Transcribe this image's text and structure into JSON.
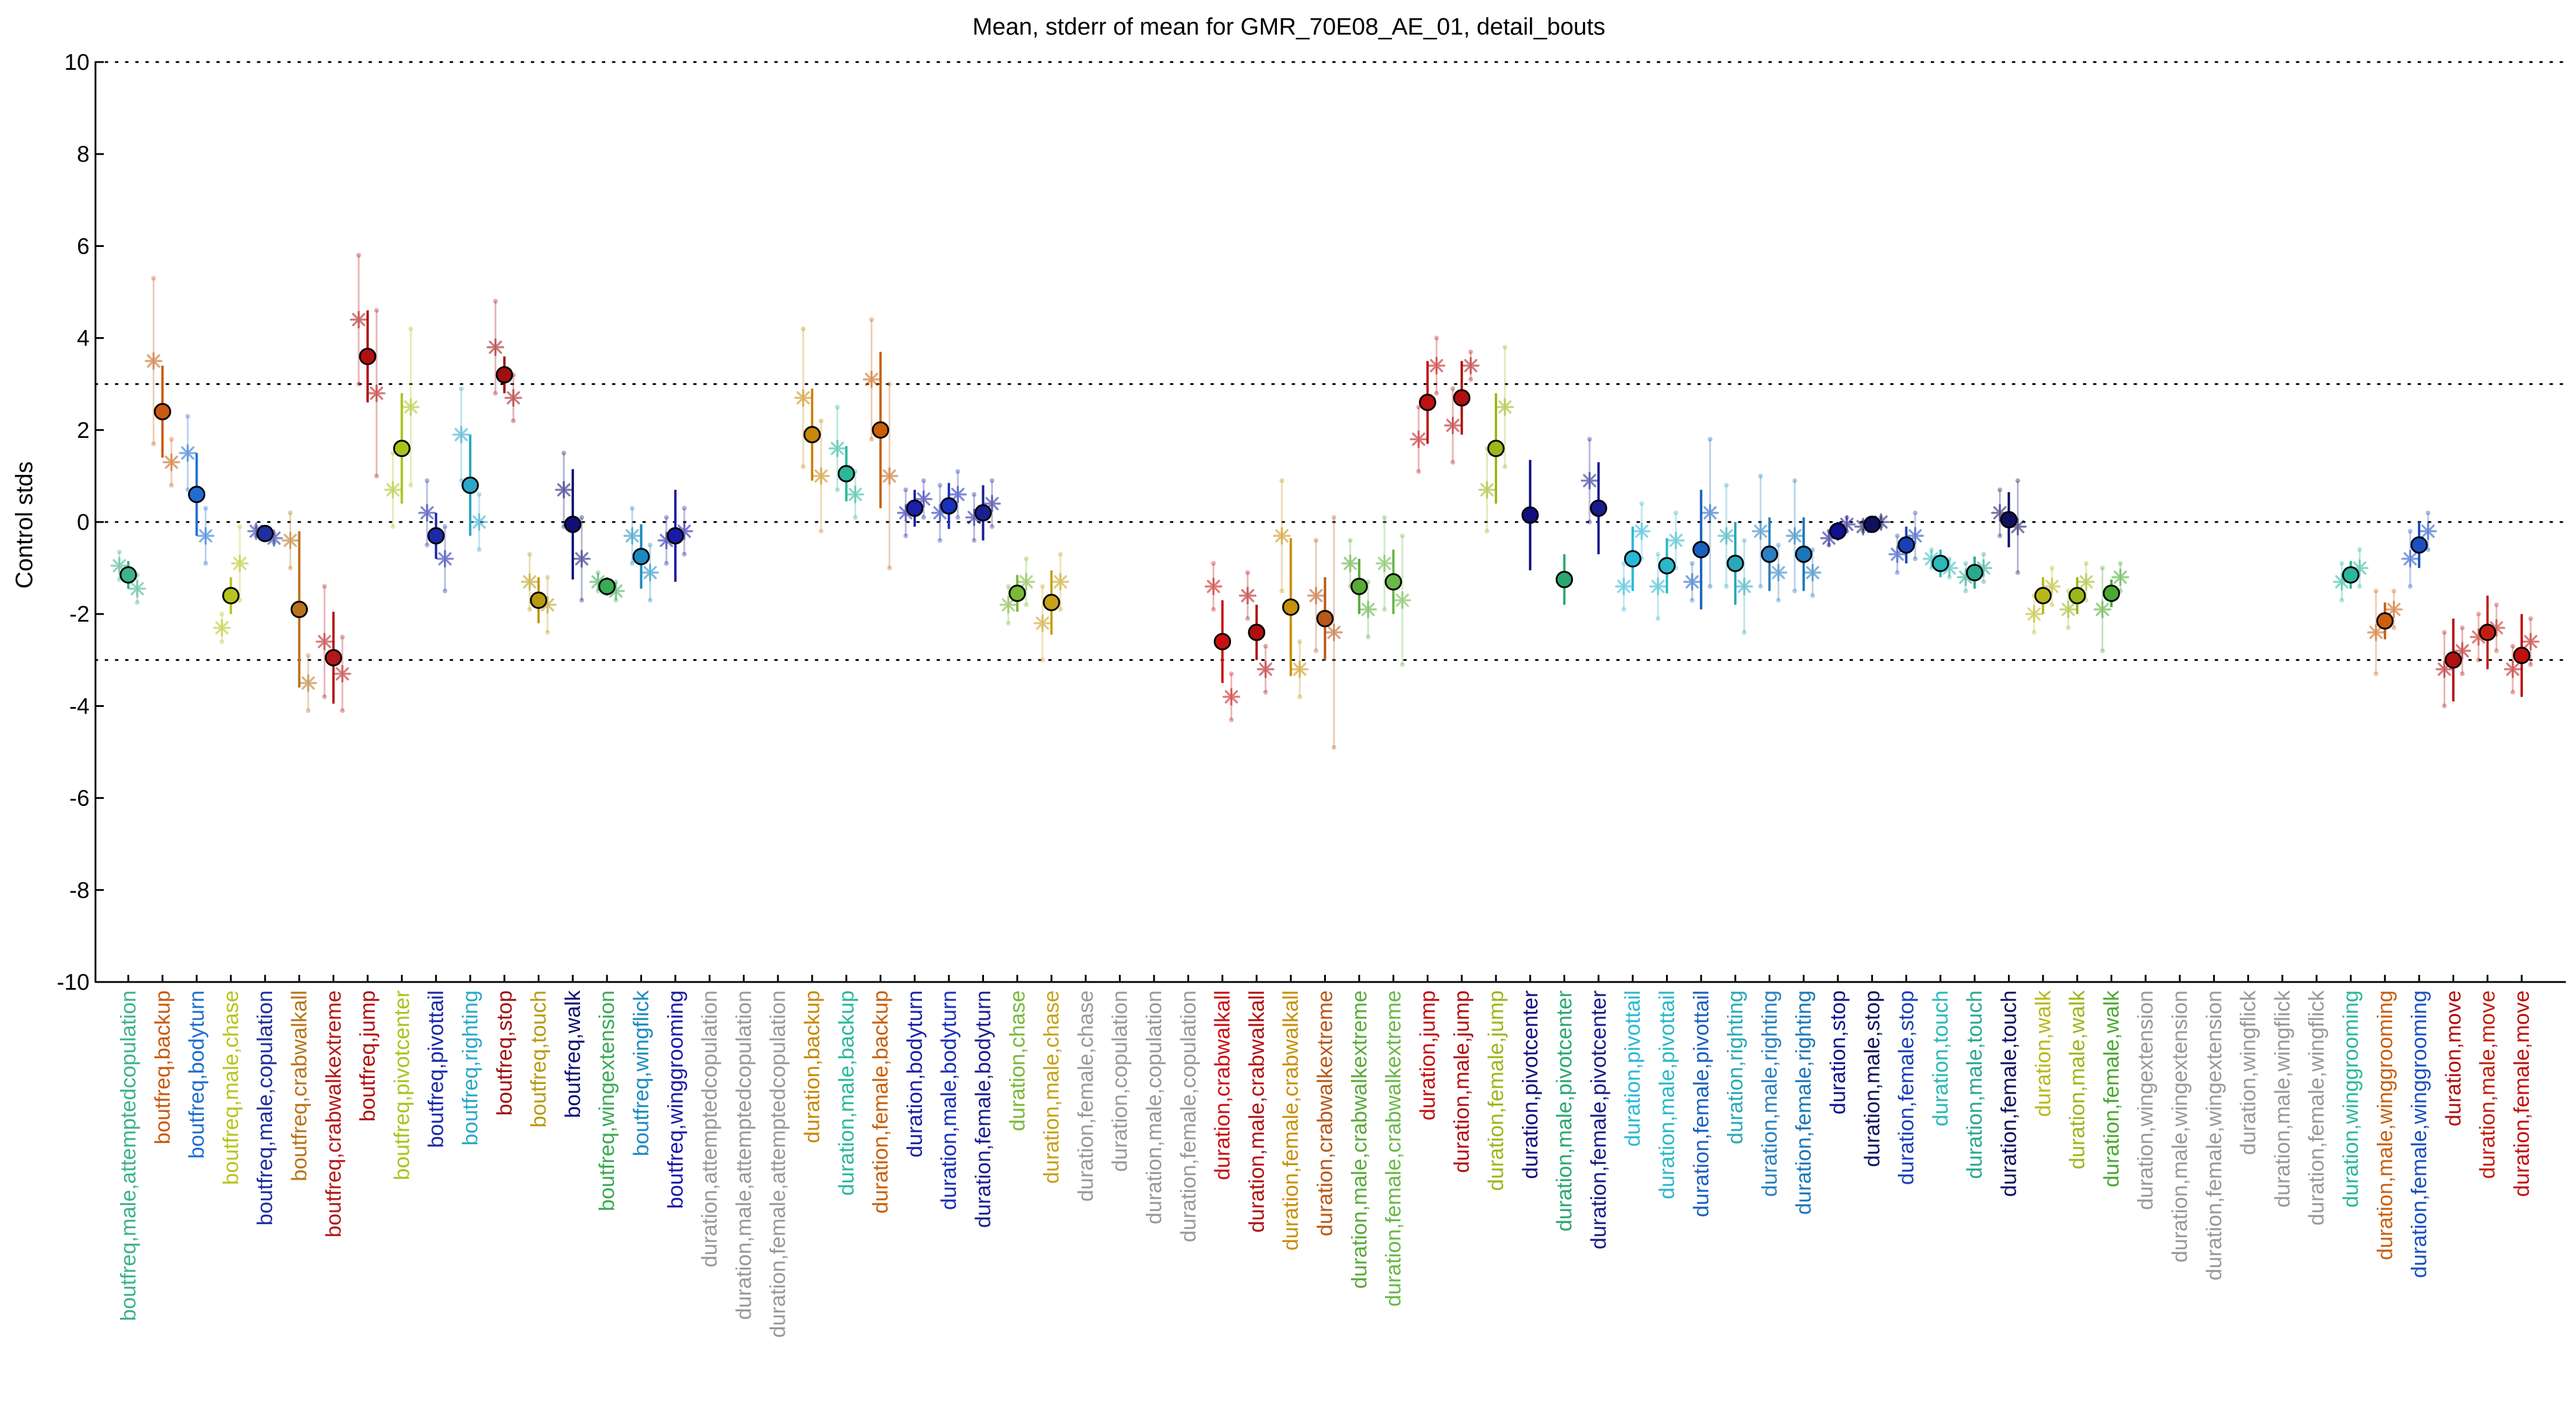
{
  "chart_data": {
    "type": "scatter",
    "title": "Mean, stderr of mean for GMR_70E08_AE_01, detail_bouts",
    "xlabel": "",
    "ylabel": "Control stds",
    "ylim": [
      -10,
      10
    ],
    "yticks": [
      10,
      8,
      6,
      4,
      2,
      0,
      -2,
      -4,
      -6,
      -8,
      -10
    ],
    "reference_lines": [
      10,
      3,
      0,
      -3,
      -10
    ],
    "grid": false,
    "categories": [
      {
        "label": "boutfreq,male,attemptedcopulation",
        "color": "#3cb38a",
        "mean": -1.15,
        "err": 0.3,
        "sub": [
          [
            -0.95,
            0.3
          ],
          [
            -1.45,
            0.3
          ]
        ]
      },
      {
        "label": "boutfreq,backup",
        "color": "#c85a10",
        "mean": 2.4,
        "err": 1.0,
        "sub": [
          [
            3.5,
            1.8
          ],
          [
            1.3,
            0.5
          ]
        ]
      },
      {
        "label": "boutfreq,bodyturn",
        "color": "#1f6ecf",
        "mean": 0.6,
        "err": 0.9,
        "sub": [
          [
            1.5,
            0.8
          ],
          [
            -0.3,
            0.6
          ]
        ]
      },
      {
        "label": "boutfreq,male,chase",
        "color": "#b8c41c",
        "mean": -1.6,
        "err": 0.4,
        "sub": [
          [
            -2.3,
            0.3
          ],
          [
            -0.9,
            0.8
          ]
        ]
      },
      {
        "label": "boutfreq,male,copulation",
        "color": "#1f2f9f",
        "mean": -0.25,
        "err": 0.1,
        "sub": [
          [
            -0.2,
            0.1
          ],
          [
            -0.35,
            0.1
          ]
        ]
      },
      {
        "label": "boutfreq,crabwalkall",
        "color": "#b8731a",
        "mean": -1.9,
        "err": 1.7,
        "sub": [
          [
            -0.4,
            0.6
          ],
          [
            -3.5,
            0.6
          ]
        ]
      },
      {
        "label": "boutfreq,crabwalkextreme",
        "color": "#b31919",
        "mean": -2.95,
        "err": 1.0,
        "sub": [
          [
            -2.6,
            1.2
          ],
          [
            -3.3,
            0.8
          ]
        ]
      },
      {
        "label": "boutfreq,jump",
        "color": "#b01010",
        "mean": 3.6,
        "err": 1.0,
        "sub": [
          [
            4.4,
            1.4
          ],
          [
            2.8,
            1.8
          ]
        ]
      },
      {
        "label": "boutfreq,pivotcenter",
        "color": "#a8c41c",
        "mean": 1.6,
        "err": 1.2,
        "sub": [
          [
            0.7,
            0.8
          ],
          [
            2.5,
            1.7
          ]
        ]
      },
      {
        "label": "boutfreq,pivottail",
        "color": "#1a2aa8",
        "mean": -0.3,
        "err": 0.5,
        "sub": [
          [
            0.2,
            0.7
          ],
          [
            -0.8,
            0.7
          ]
        ]
      },
      {
        "label": "boutfreq,righting",
        "color": "#2aa8c8",
        "mean": 0.8,
        "err": 1.1,
        "sub": [
          [
            1.9,
            1.0
          ],
          [
            0.0,
            0.6
          ]
        ]
      },
      {
        "label": "boutfreq,stop",
        "color": "#a01010",
        "mean": 3.2,
        "err": 0.4,
        "sub": [
          [
            3.8,
            1.0
          ],
          [
            2.7,
            0.5
          ]
        ]
      },
      {
        "label": "boutfreq,touch",
        "color": "#b89a10",
        "mean": -1.7,
        "err": 0.5,
        "sub": [
          [
            -1.3,
            0.6
          ],
          [
            -1.8,
            0.6
          ]
        ]
      },
      {
        "label": "boutfreq,walk",
        "color": "#101075",
        "mean": -0.05,
        "err": 1.2,
        "sub": [
          [
            0.7,
            0.8
          ],
          [
            -0.8,
            0.9
          ]
        ]
      },
      {
        "label": "boutfreq,wingextension",
        "color": "#3aaa55",
        "mean": -1.4,
        "err": 0.2,
        "sub": [
          [
            -1.3,
            0.2
          ],
          [
            -1.5,
            0.2
          ]
        ]
      },
      {
        "label": "boutfreq,wingflick",
        "color": "#1a8ac0",
        "mean": -0.75,
        "err": 0.7,
        "sub": [
          [
            -0.3,
            0.6
          ],
          [
            -1.1,
            0.6
          ]
        ]
      },
      {
        "label": "boutfreq,winggrooming",
        "color": "#1a1aa8",
        "mean": -0.3,
        "err": 1.0,
        "sub": [
          [
            -0.4,
            0.5
          ],
          [
            -0.2,
            0.5
          ]
        ]
      },
      {
        "label": "duration,attemptedcopulation",
        "color": "#999999"
      },
      {
        "label": "duration,male,attemptedcopulation",
        "color": "#999999"
      },
      {
        "label": "duration,female,attemptedcopulation",
        "color": "#999999"
      },
      {
        "label": "duration,backup",
        "color": "#c8880a",
        "mean": 1.9,
        "err": 1.0,
        "sub": [
          [
            2.7,
            1.5
          ],
          [
            1.0,
            1.2
          ]
        ]
      },
      {
        "label": "duration,male,backup",
        "color": "#2ab89a",
        "mean": 1.05,
        "err": 0.6,
        "sub": [
          [
            1.6,
            0.9
          ],
          [
            0.6,
            0.5
          ]
        ]
      },
      {
        "label": "duration,female,backup",
        "color": "#c8600a",
        "mean": 2.0,
        "err": 1.7,
        "sub": [
          [
            3.1,
            1.3
          ],
          [
            1.0,
            2.0
          ]
        ]
      },
      {
        "label": "duration,bodyturn",
        "color": "#1a20a8",
        "mean": 0.3,
        "err": 0.4,
        "sub": [
          [
            0.2,
            0.5
          ],
          [
            0.5,
            0.4
          ]
        ]
      },
      {
        "label": "duration,male,bodyturn",
        "color": "#1a30b8",
        "mean": 0.35,
        "err": 0.5,
        "sub": [
          [
            0.2,
            0.6
          ],
          [
            0.6,
            0.5
          ]
        ]
      },
      {
        "label": "duration,female,bodyturn",
        "color": "#1a2090",
        "mean": 0.2,
        "err": 0.6,
        "sub": [
          [
            0.1,
            0.5
          ],
          [
            0.4,
            0.5
          ]
        ]
      },
      {
        "label": "duration,chase",
        "color": "#7ab83a",
        "mean": -1.55,
        "err": 0.4,
        "sub": [
          [
            -1.8,
            0.4
          ],
          [
            -1.3,
            0.5
          ]
        ]
      },
      {
        "label": "duration,male,chase",
        "color": "#c8a01a",
        "mean": -1.75,
        "err": 0.7,
        "sub": [
          [
            -2.2,
            0.8
          ],
          [
            -1.3,
            0.6
          ]
        ]
      },
      {
        "label": "duration,female,chase",
        "color": "#999999"
      },
      {
        "label": "duration,copulation",
        "color": "#999999"
      },
      {
        "label": "duration,male,copulation",
        "color": "#999999"
      },
      {
        "label": "duration,female,copulation",
        "color": "#999999"
      },
      {
        "label": "duration,crabwalkall",
        "color": "#c81010",
        "mean": -2.6,
        "err": 0.9,
        "sub": [
          [
            -1.4,
            0.5
          ],
          [
            -3.8,
            0.5
          ]
        ]
      },
      {
        "label": "duration,male,crabwalkall",
        "color": "#b01010",
        "mean": -2.4,
        "err": 0.6,
        "sub": [
          [
            -1.6,
            0.5
          ],
          [
            -3.2,
            0.5
          ]
        ]
      },
      {
        "label": "duration,female,crabwalkall",
        "color": "#c8900a",
        "mean": -1.85,
        "err": 1.5,
        "sub": [
          [
            -0.3,
            1.2
          ],
          [
            -3.2,
            0.6
          ]
        ]
      },
      {
        "label": "duration,crabwalkextreme",
        "color": "#b8581a",
        "mean": -2.1,
        "err": 0.9,
        "sub": [
          [
            -1.6,
            1.2
          ],
          [
            -2.4,
            2.5
          ]
        ]
      },
      {
        "label": "duration,male,crabwalkextreme",
        "color": "#5aaa3a",
        "mean": -1.4,
        "err": 0.6,
        "sub": [
          [
            -0.9,
            0.5
          ],
          [
            -1.9,
            0.6
          ]
        ]
      },
      {
        "label": "duration,female,crabwalkextreme",
        "color": "#6ab84a",
        "mean": -1.3,
        "err": 0.7,
        "sub": [
          [
            -0.9,
            1.0
          ],
          [
            -1.7,
            1.4
          ]
        ]
      },
      {
        "label": "duration,jump",
        "color": "#c01010",
        "mean": 2.6,
        "err": 0.9,
        "sub": [
          [
            1.8,
            0.7
          ],
          [
            3.4,
            0.6
          ]
        ]
      },
      {
        "label": "duration,male,jump",
        "color": "#b01010",
        "mean": 2.7,
        "err": 0.8,
        "sub": [
          [
            2.1,
            0.8
          ],
          [
            3.4,
            0.3
          ]
        ]
      },
      {
        "label": "duration,female,jump",
        "color": "#9ab81a",
        "mean": 1.6,
        "err": 1.2,
        "sub": [
          [
            0.7,
            0.9
          ],
          [
            2.5,
            1.3
          ]
        ]
      },
      {
        "label": "duration,pivotcenter",
        "color": "#101080",
        "mean": 0.15,
        "err": 1.2,
        "sub": []
      },
      {
        "label": "duration,male,pivotcenter",
        "color": "#2aa870",
        "mean": -1.25,
        "err": 0.55,
        "sub": []
      },
      {
        "label": "duration,female,pivotcenter",
        "color": "#1a1a90",
        "mean": 0.3,
        "err": 1.0,
        "sub": [
          [
            0.9,
            0.9
          ]
        ]
      },
      {
        "label": "duration,pivottail",
        "color": "#2ab8d8",
        "mean": -0.8,
        "err": 0.7,
        "sub": [
          [
            -1.4,
            0.5
          ],
          [
            -0.2,
            0.6
          ]
        ]
      },
      {
        "label": "duration,male,pivottail",
        "color": "#2ab8c8",
        "mean": -0.95,
        "err": 0.6,
        "sub": [
          [
            -1.4,
            0.7
          ],
          [
            -0.4,
            0.6
          ]
        ]
      },
      {
        "label": "duration,female,pivottail",
        "color": "#1a60c0",
        "mean": -0.6,
        "err": 1.3,
        "sub": [
          [
            -1.3,
            0.4
          ],
          [
            0.2,
            1.6
          ]
        ]
      },
      {
        "label": "duration,righting",
        "color": "#2aa8b8",
        "mean": -0.9,
        "err": 0.9,
        "sub": [
          [
            -0.3,
            1.1
          ],
          [
            -1.4,
            1.0
          ]
        ]
      },
      {
        "label": "duration,male,righting",
        "color": "#2a80c0",
        "mean": -0.7,
        "err": 0.8,
        "sub": [
          [
            -0.2,
            1.2
          ],
          [
            -1.1,
            0.6
          ]
        ]
      },
      {
        "label": "duration,female,righting",
        "color": "#1a78b8",
        "mean": -0.7,
        "err": 0.8,
        "sub": [
          [
            -0.3,
            1.2
          ],
          [
            -1.1,
            0.5
          ]
        ]
      },
      {
        "label": "duration,stop",
        "color": "#101090",
        "mean": -0.2,
        "err": 0.2,
        "sub": [
          [
            -0.35,
            0.15
          ],
          [
            -0.05,
            0.15
          ]
        ]
      },
      {
        "label": "duration,male,stop",
        "color": "#101060",
        "mean": -0.05,
        "err": 0.15,
        "sub": [
          [
            -0.1,
            0.1
          ],
          [
            0.0,
            0.1
          ]
        ]
      },
      {
        "label": "duration,female,stop",
        "color": "#1a40b8",
        "mean": -0.5,
        "err": 0.4,
        "sub": [
          [
            -0.7,
            0.4
          ],
          [
            -0.3,
            0.5
          ]
        ]
      },
      {
        "label": "duration,touch",
        "color": "#2ab8b8",
        "mean": -0.9,
        "err": 0.3,
        "sub": [
          [
            -0.8,
            0.2
          ],
          [
            -1.0,
            0.2
          ]
        ]
      },
      {
        "label": "duration,male,touch",
        "color": "#2aa890",
        "mean": -1.1,
        "err": 0.35,
        "sub": [
          [
            -1.2,
            0.3
          ],
          [
            -1.0,
            0.3
          ]
        ]
      },
      {
        "label": "duration,female,touch",
        "color": "#101060",
        "mean": 0.05,
        "err": 0.6,
        "sub": [
          [
            0.2,
            0.5
          ],
          [
            -0.1,
            1.0
          ]
        ]
      },
      {
        "label": "duration,walk",
        "color": "#b8b81a",
        "mean": -1.6,
        "err": 0.4,
        "sub": [
          [
            -2.0,
            0.4
          ],
          [
            -1.4,
            0.4
          ]
        ]
      },
      {
        "label": "duration,male,walk",
        "color": "#9ab81a",
        "mean": -1.6,
        "err": 0.4,
        "sub": [
          [
            -1.9,
            0.4
          ],
          [
            -1.3,
            0.4
          ]
        ]
      },
      {
        "label": "duration,female,walk",
        "color": "#4aa830",
        "mean": -1.55,
        "err": 0.3,
        "sub": [
          [
            -1.9,
            0.9
          ],
          [
            -1.2,
            0.3
          ]
        ]
      },
      {
        "label": "duration,wingextension",
        "color": "#999999"
      },
      {
        "label": "duration,male,wingextension",
        "color": "#999999"
      },
      {
        "label": "duration,female,wingextension",
        "color": "#999999"
      },
      {
        "label": "duration,wingflick",
        "color": "#999999"
      },
      {
        "label": "duration,male,wingflick",
        "color": "#999999"
      },
      {
        "label": "duration,female,wingflick",
        "color": "#999999"
      },
      {
        "label": "duration,winggrooming",
        "color": "#2ab89a",
        "mean": -1.15,
        "err": 0.3,
        "sub": [
          [
            -1.3,
            0.4
          ],
          [
            -1.0,
            0.4
          ]
        ]
      },
      {
        "label": "duration,male,winggrooming",
        "color": "#c86010",
        "mean": -2.15,
        "err": 0.4,
        "sub": [
          [
            -2.4,
            0.9
          ],
          [
            -1.9,
            0.4
          ]
        ]
      },
      {
        "label": "duration,female,winggrooming",
        "color": "#1a50c0",
        "mean": -0.5,
        "err": 0.5,
        "sub": [
          [
            -0.8,
            0.6
          ],
          [
            -0.2,
            0.4
          ]
        ]
      },
      {
        "label": "duration,move",
        "color": "#b01010",
        "mean": -3.0,
        "err": 0.9,
        "sub": [
          [
            -3.2,
            0.8
          ],
          [
            -2.8,
            0.5
          ]
        ]
      },
      {
        "label": "duration,male,move",
        "color": "#c02010",
        "mean": -2.4,
        "err": 0.8,
        "sub": [
          [
            -2.5,
            0.5
          ],
          [
            -2.3,
            0.5
          ]
        ]
      },
      {
        "label": "duration,female,move",
        "color": "#c01010",
        "mean": -2.9,
        "err": 0.9,
        "sub": [
          [
            -3.2,
            0.5
          ],
          [
            -2.6,
            0.5
          ]
        ]
      }
    ]
  }
}
